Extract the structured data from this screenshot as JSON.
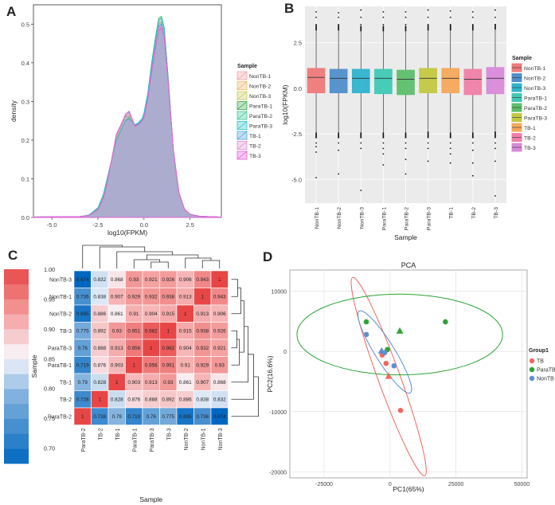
{
  "chart_data": [
    {
      "panel": "A",
      "type": "area",
      "xlabel": "log10(FPKM)",
      "ylabel": "density",
      "xlim": [
        -6,
        4.2
      ],
      "ylim": [
        0,
        0.55
      ],
      "xticks": [
        "-5.0",
        "-2.5",
        "0.0",
        "2.5"
      ],
      "xtick_values": [
        -5,
        -2.5,
        0,
        2.5
      ],
      "yticks": [
        "0.0",
        "0.1",
        "0.2",
        "0.3",
        "0.4",
        "0.5"
      ],
      "ytick_values": [
        0,
        0.1,
        0.2,
        0.3,
        0.4,
        0.5
      ],
      "x": [
        -6,
        -3.5,
        -3,
        -2.5,
        -2.2,
        -2,
        -1.7,
        -1.5,
        -1.2,
        -1,
        -0.8,
        -0.6,
        -0.5,
        -0.3,
        -0.1,
        0,
        0.2,
        0.4,
        0.6,
        0.8,
        0.95,
        1.1,
        1.3,
        1.6,
        1.9,
        2.2,
        2.5,
        3,
        3.5,
        4.2
      ],
      "legend_title": "Sample",
      "series": [
        {
          "name": "NonTB-1",
          "color": "#f2a3a8",
          "values": [
            0.001,
            0.002,
            0.005,
            0.02,
            0.05,
            0.09,
            0.16,
            0.21,
            0.24,
            0.26,
            0.262,
            0.245,
            0.235,
            0.24,
            0.25,
            0.26,
            0.31,
            0.38,
            0.44,
            0.495,
            0.5,
            0.47,
            0.36,
            0.17,
            0.06,
            0.02,
            0.008,
            0.003,
            0.002,
            0.001
          ]
        },
        {
          "name": "NonTB-2",
          "color": "#f0b86a",
          "values": [
            0.001,
            0.002,
            0.005,
            0.02,
            0.055,
            0.09,
            0.16,
            0.21,
            0.24,
            0.262,
            0.265,
            0.248,
            0.236,
            0.24,
            0.25,
            0.262,
            0.31,
            0.385,
            0.445,
            0.5,
            0.505,
            0.475,
            0.36,
            0.17,
            0.06,
            0.02,
            0.008,
            0.003,
            0.002,
            0.001
          ]
        },
        {
          "name": "NonTB-3",
          "color": "#c8cc5a",
          "values": [
            0.001,
            0.002,
            0.005,
            0.02,
            0.05,
            0.095,
            0.16,
            0.205,
            0.24,
            0.262,
            0.26,
            0.245,
            0.235,
            0.24,
            0.252,
            0.262,
            0.31,
            0.385,
            0.445,
            0.505,
            0.505,
            0.475,
            0.36,
            0.17,
            0.06,
            0.02,
            0.008,
            0.003,
            0.002,
            0.001
          ]
        },
        {
          "name": "ParaTB-1",
          "color": "#3aa84a",
          "values": [
            0.001,
            0.002,
            0.006,
            0.025,
            0.06,
            0.1,
            0.16,
            0.2,
            0.23,
            0.25,
            0.255,
            0.245,
            0.24,
            0.245,
            0.255,
            0.27,
            0.32,
            0.395,
            0.46,
            0.515,
            0.52,
            0.49,
            0.37,
            0.17,
            0.06,
            0.02,
            0.008,
            0.003,
            0.002,
            0.001
          ]
        },
        {
          "name": "ParaTB-2",
          "color": "#3cc79a",
          "values": [
            0.001,
            0.002,
            0.006,
            0.022,
            0.058,
            0.098,
            0.158,
            0.2,
            0.232,
            0.252,
            0.258,
            0.245,
            0.238,
            0.243,
            0.255,
            0.268,
            0.318,
            0.39,
            0.455,
            0.51,
            0.515,
            0.485,
            0.365,
            0.17,
            0.06,
            0.02,
            0.008,
            0.003,
            0.002,
            0.001
          ]
        },
        {
          "name": "ParaTB-3",
          "color": "#27c3c8",
          "values": [
            0.001,
            0.002,
            0.006,
            0.024,
            0.06,
            0.1,
            0.158,
            0.2,
            0.23,
            0.25,
            0.256,
            0.246,
            0.24,
            0.245,
            0.256,
            0.27,
            0.32,
            0.39,
            0.455,
            0.51,
            0.515,
            0.49,
            0.37,
            0.17,
            0.06,
            0.02,
            0.008,
            0.003,
            0.002,
            0.001
          ]
        },
        {
          "name": "TB-1",
          "color": "#4aa3e6",
          "values": [
            0.001,
            0.002,
            0.005,
            0.02,
            0.05,
            0.09,
            0.16,
            0.215,
            0.245,
            0.265,
            0.272,
            0.25,
            0.238,
            0.242,
            0.252,
            0.262,
            0.31,
            0.38,
            0.44,
            0.495,
            0.5,
            0.47,
            0.36,
            0.17,
            0.06,
            0.02,
            0.008,
            0.003,
            0.002,
            0.001
          ]
        },
        {
          "name": "TB-2",
          "color": "#e08fd1",
          "values": [
            0.001,
            0.002,
            0.005,
            0.02,
            0.05,
            0.09,
            0.16,
            0.212,
            0.242,
            0.265,
            0.27,
            0.248,
            0.236,
            0.24,
            0.25,
            0.26,
            0.305,
            0.375,
            0.435,
            0.49,
            0.495,
            0.47,
            0.355,
            0.17,
            0.06,
            0.02,
            0.008,
            0.003,
            0.002,
            0.001
          ]
        },
        {
          "name": "TB-3",
          "color": "#e15fd6",
          "values": [
            0.001,
            0.002,
            0.005,
            0.02,
            0.05,
            0.09,
            0.165,
            0.215,
            0.245,
            0.268,
            0.275,
            0.25,
            0.236,
            0.24,
            0.25,
            0.258,
            0.305,
            0.37,
            0.43,
            0.485,
            0.49,
            0.465,
            0.36,
            0.175,
            0.065,
            0.022,
            0.008,
            0.003,
            0.002,
            0.001
          ]
        }
      ]
    },
    {
      "panel": "B",
      "type": "box",
      "xlabel": "Sample",
      "ylabel": "log10(FPKM)",
      "ylim": [
        -6.3,
        4.5
      ],
      "yticks": [
        "2.5",
        "0.0",
        "-2.5",
        "-5.0"
      ],
      "ytick_values": [
        2.5,
        0,
        -2.5,
        -5
      ],
      "legend_title": "Sample",
      "categories": [
        "NonTB-1",
        "NonTB-2",
        "NonTB-3",
        "ParaTB-1",
        "ParaTB-2",
        "ParaTB-3",
        "TB-1",
        "TB-2",
        "TB-3"
      ],
      "colors": [
        "#f07a7a",
        "#4f8fcc",
        "#2fb4cf",
        "#3fc9b4",
        "#5cbf6a",
        "#c3c841",
        "#f5a85a",
        "#f07fa8",
        "#d88ad8"
      ],
      "boxes": [
        {
          "q1": -0.25,
          "median": 0.6,
          "q3": 1.1,
          "lower": -2.4,
          "upper": 3.15,
          "outliers": [
            -2.7,
            -3.0,
            -3.2,
            -3.5,
            -4.9,
            3.5,
            3.9,
            4.2
          ]
        },
        {
          "q1": -0.25,
          "median": 0.55,
          "q3": 1.05,
          "lower": -2.4,
          "upper": 3.15,
          "outliers": [
            -2.7,
            -3.0,
            -3.4,
            -4.7,
            3.5,
            3.9,
            4.15
          ]
        },
        {
          "q1": -0.25,
          "median": 0.55,
          "q3": 1.05,
          "lower": -2.4,
          "upper": 3.1,
          "outliers": [
            -2.7,
            -3.0,
            -3.3,
            -5.6,
            3.5,
            3.9,
            4.3
          ]
        },
        {
          "q1": -0.3,
          "median": 0.55,
          "q3": 1.05,
          "lower": -2.4,
          "upper": 3.1,
          "outliers": [
            -2.7,
            -3.0,
            -3.3,
            -3.6,
            -4.2,
            3.5,
            3.9,
            4.2
          ]
        },
        {
          "q1": -0.35,
          "median": 0.5,
          "q3": 1.0,
          "lower": -2.4,
          "upper": 3.1,
          "outliers": [
            -2.7,
            -3.0,
            -3.3,
            -3.9,
            -4.7,
            3.5,
            3.9,
            4.2
          ]
        },
        {
          "q1": -0.25,
          "median": 0.55,
          "q3": 1.1,
          "lower": -2.35,
          "upper": 3.15,
          "outliers": [
            -2.7,
            -3.0,
            -3.3,
            -4.0,
            3.5,
            3.9,
            4.3
          ]
        },
        {
          "q1": -0.25,
          "median": 0.55,
          "q3": 1.1,
          "lower": -2.4,
          "upper": 3.15,
          "outliers": [
            -2.7,
            -3.0,
            -3.3,
            -3.6,
            -4.1,
            3.5,
            3.9,
            4.25
          ]
        },
        {
          "q1": -0.35,
          "median": 0.5,
          "q3": 1.05,
          "lower": -2.4,
          "upper": 3.15,
          "outliers": [
            -2.7,
            -3.0,
            -3.4,
            -4.1,
            -4.8,
            3.5,
            3.9,
            4.2
          ]
        },
        {
          "q1": -0.3,
          "median": 0.55,
          "q3": 1.15,
          "lower": -2.35,
          "upper": 3.2,
          "outliers": [
            -2.7,
            -3.0,
            -3.3,
            -4.0,
            -5.9,
            3.5,
            3.9,
            4.3
          ]
        }
      ]
    },
    {
      "panel": "C",
      "type": "heatmap",
      "xlabel": "Sample",
      "legend_title": "Sample",
      "rows": [
        "NonTB-3",
        "NonTB-1",
        "NonTB-2",
        "TB-3",
        "ParaTB-3",
        "ParaTB-1",
        "TB-1",
        "TB-2",
        "ParaTB-2"
      ],
      "cols": [
        "ParaTB-2",
        "TB-2",
        "TB-1",
        "ParaTB-1",
        "ParaTB-3",
        "TB-3",
        "NonTB-2",
        "NonTB-1",
        "NonTB-3"
      ],
      "values": [
        [
          0.674,
          0.832,
          0.868,
          0.93,
          0.921,
          0.926,
          0.906,
          0.943,
          1
        ],
        [
          0.736,
          0.838,
          0.907,
          0.929,
          0.932,
          0.938,
          0.913,
          1,
          0.943
        ],
        [
          0.695,
          0.886,
          0.861,
          0.91,
          0.904,
          0.915,
          1,
          0.913,
          0.906
        ],
        [
          0.775,
          0.892,
          0.93,
          0.951,
          0.982,
          1,
          0.915,
          0.938,
          0.926
        ],
        [
          0.76,
          0.888,
          0.913,
          0.956,
          1,
          0.982,
          0.904,
          0.932,
          0.921
        ],
        [
          0.719,
          0.876,
          0.903,
          1,
          0.956,
          0.951,
          0.91,
          0.929,
          0.93
        ],
        [
          0.79,
          0.828,
          1,
          0.903,
          0.913,
          0.93,
          0.861,
          0.907,
          0.868
        ],
        [
          0.728,
          1,
          0.828,
          0.876,
          0.888,
          0.892,
          0.886,
          0.838,
          0.832
        ],
        [
          1,
          0.728,
          0.79,
          0.719,
          0.76,
          0.775,
          0.695,
          0.736,
          0.674
        ]
      ],
      "labels": [
        [
          "0.674",
          "0.832",
          "0.868",
          "0.93",
          "0.921",
          "0.926",
          "0.906",
          "0.943",
          "1"
        ],
        [
          "0.736",
          "0.838",
          "0.907",
          "0.929",
          "0.932",
          "0.938",
          "0.913",
          "1",
          "0.943"
        ],
        [
          "0.695",
          "0.886",
          "0.861",
          "0.91",
          "0.904",
          "0.915",
          "1",
          "0.913",
          "0.906"
        ],
        [
          "0.775",
          "0.892",
          "0.93",
          "0.951",
          "0.982",
          "1",
          "0.915",
          "0.938",
          "0.926"
        ],
        [
          "0.76",
          "0.888",
          "0.913",
          "0.956",
          "1",
          "0.982",
          "0.904",
          "0.932",
          "0.921"
        ],
        [
          "0.719",
          "0.876",
          "0.903",
          "1",
          "0.956",
          "0.951",
          "0.91",
          "0.929",
          "0.93"
        ],
        [
          "0.79",
          "0.828",
          "1",
          "0.903",
          "0.913",
          "0.93",
          "0.861",
          "0.907",
          "0.868"
        ],
        [
          "0.728",
          "1",
          "0.828",
          "0.876",
          "0.888",
          "0.892",
          "0.886",
          "0.838",
          "0.832"
        ],
        [
          "1",
          "0.728",
          "0.79",
          "0.719",
          "0.76",
          "0.775",
          "0.695",
          "0.736",
          "0.674"
        ]
      ],
      "colorbar_range": [
        0.674,
        1
      ],
      "colorbar_ticks": [
        "1.00",
        "0.95",
        "0.90",
        "0.85",
        "0.80",
        "0.75",
        "0.70"
      ],
      "colorbar_tick_values": [
        1,
        0.95,
        0.9,
        0.85,
        0.8,
        0.75,
        0.7
      ]
    },
    {
      "panel": "D",
      "type": "scatter",
      "title": "PCA",
      "xlabel": "PC1(65%)",
      "ylabel": "PC2(16.6%)",
      "xlim": [
        -38000,
        52000
      ],
      "ylim": [
        -21000,
        13500
      ],
      "xticks": [
        "-25000",
        "0",
        "25000",
        "50000"
      ],
      "xtick_values": [
        -25000,
        0,
        25000,
        50000
      ],
      "yticks": [
        "10000",
        "0",
        "-10000",
        "-20000"
      ],
      "ytick_values": [
        10000,
        0,
        -10000,
        -20000
      ],
      "legend_title": "Group1",
      "groups": [
        {
          "name": "TB",
          "color": "#f0685e",
          "points": [
            [
              4000,
              -9800
            ],
            [
              -3000,
              -600
            ],
            [
              -1500,
              -2000
            ]
          ],
          "center": [
            -500,
            -4100
          ],
          "center_marker": "triangle"
        },
        {
          "name": "ParaTB",
          "color": "#2ea437",
          "points": [
            [
              -9000,
              4900
            ],
            [
              21000,
              4900
            ],
            [
              -1000,
              300
            ]
          ],
          "center": [
            3700,
            3400
          ],
          "center_marker": "triangle"
        },
        {
          "name": "NonTB",
          "color": "#5f8fd1",
          "points": [
            [
              -9000,
              2800
            ],
            [
              -2000,
              -200
            ],
            [
              1500,
              -2400
            ]
          ],
          "center": [
            -3200,
            100
          ],
          "center_marker": "triangle"
        }
      ],
      "ellipses": [
        {
          "group": "TB",
          "cx": -500,
          "cy": -4200,
          "rx": 4200,
          "ry": 17500,
          "angle_deg": -20
        },
        {
          "group": "ParaTB",
          "cx": 3700,
          "cy": 2800,
          "rx": 39000,
          "ry": 6700,
          "angle_deg": 0
        },
        {
          "group": "NonTB",
          "cx": -2000,
          "cy": -100,
          "rx": 3700,
          "ry": 8000,
          "angle_deg": -32
        }
      ]
    }
  ],
  "dendrogram_top": "column clustering tree",
  "dendrogram_right": "row clustering tree"
}
